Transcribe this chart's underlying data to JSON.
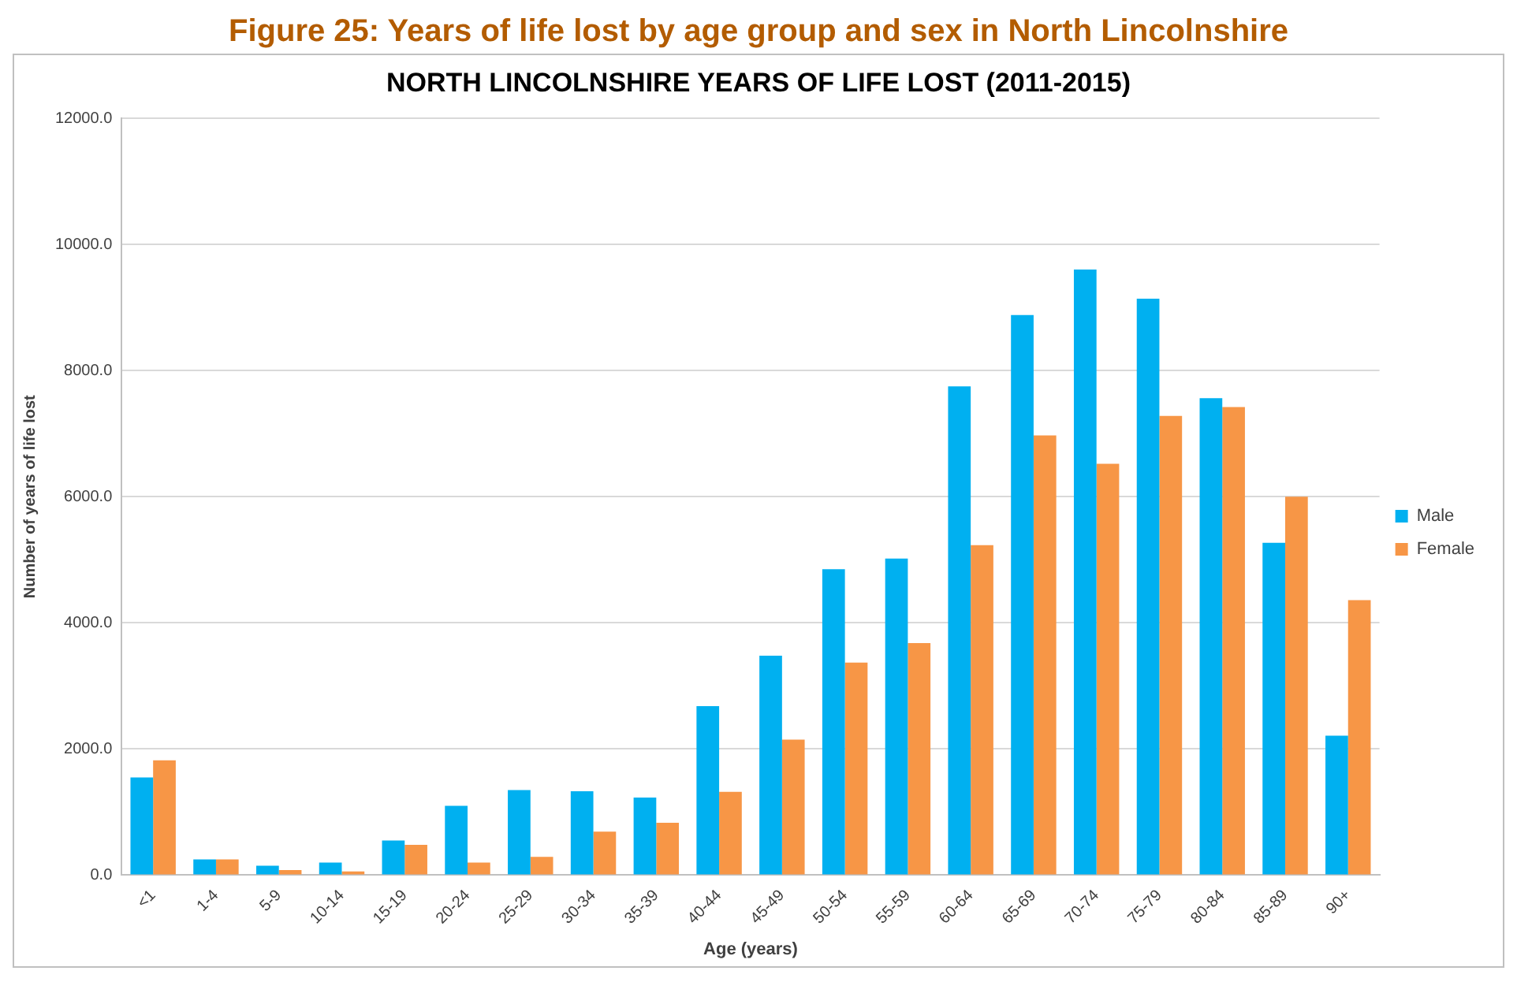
{
  "chart_data": {
    "type": "bar",
    "title": "Figure 25: Years of life lost by age group and sex in North Lincolnshire",
    "subtitle": "NORTH LINCOLNSHIRE YEARS OF LIFE LOST (2011-2015)",
    "xlabel": "Age (years)",
    "ylabel": "Number of years of life lost",
    "categories": [
      "<1",
      "1-4",
      "5-9",
      "10-14",
      "15-19",
      "20-24",
      "25-29",
      "30-34",
      "35-39",
      "40-44",
      "45-49",
      "50-54",
      "55-59",
      "60-64",
      "65-69",
      "70-74",
      "75-79",
      "80-84",
      "85-89",
      "90+"
    ],
    "series": [
      {
        "name": "Male",
        "color": "#00b0f0",
        "values": [
          1550,
          250,
          150,
          200,
          550,
          1100,
          1350,
          1330,
          1230,
          2680,
          3480,
          4850,
          5020,
          7750,
          8880,
          9600,
          9140,
          7560,
          5270,
          2210
        ]
      },
      {
        "name": "Female",
        "color": "#f79646",
        "values": [
          1820,
          250,
          80,
          60,
          480,
          200,
          290,
          690,
          830,
          1320,
          2150,
          3370,
          3680,
          5230,
          6970,
          6520,
          7280,
          7420,
          6000,
          4360
        ]
      }
    ],
    "ylim": [
      0,
      12000
    ],
    "yticks": [
      {
        "value": 0,
        "label": "0.0"
      },
      {
        "value": 2000,
        "label": "2000.0"
      },
      {
        "value": 4000,
        "label": "4000.0"
      },
      {
        "value": 6000,
        "label": "6000.0"
      },
      {
        "value": 8000,
        "label": "8000.0"
      },
      {
        "value": 10000,
        "label": "10000.0"
      },
      {
        "value": 12000,
        "label": "12000.0"
      }
    ],
    "grid": "y",
    "legend": "right"
  }
}
